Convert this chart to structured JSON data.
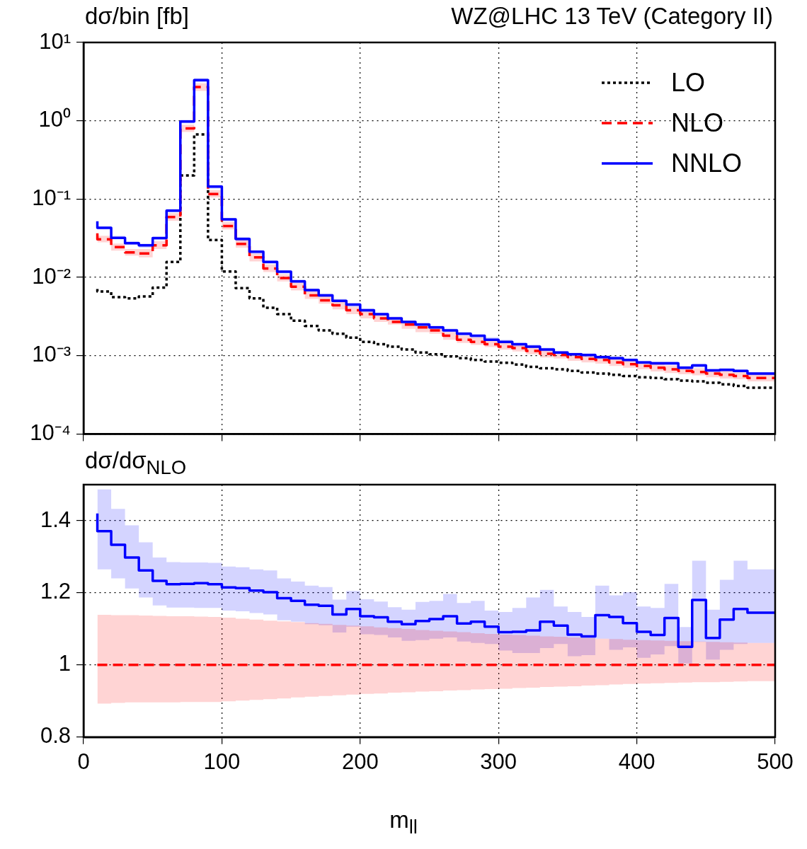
{
  "chart_data": [
    {
      "type": "step",
      "title": "WZ@LHC 13 TeV (Category II)",
      "ylabel": "dσ/bin [fb]",
      "log": "y",
      "grid": true,
      "legend": "top right",
      "tick_labels": "y",
      "x": [
        10,
        20,
        30,
        40,
        50,
        60,
        70,
        80,
        90,
        100,
        110,
        120,
        130,
        140,
        150,
        160,
        170,
        180,
        190,
        200,
        210,
        220,
        230,
        240,
        250,
        260,
        270,
        280,
        290,
        300,
        310,
        320,
        330,
        340,
        350,
        360,
        370,
        380,
        390,
        400,
        410,
        420,
        430,
        440,
        450,
        460,
        470,
        480,
        490,
        500
      ],
      "xlim": [
        0,
        500
      ],
      "xticks": [
        0,
        100,
        200,
        300,
        400,
        500
      ],
      "ylim": [
        0.0001,
        10
      ],
      "yticks": [
        {
          "value": 0.0001,
          "label": "10⁻⁴"
        },
        {
          "value": 0.001,
          "label": "10⁻³"
        },
        {
          "value": 0.01,
          "label": "10⁻²"
        },
        {
          "value": 0.1,
          "label": "10⁻¹"
        },
        {
          "value": 1,
          "label": "10⁰"
        },
        {
          "value": 10,
          "label": "10¹"
        }
      ],
      "series": [
        {
          "name": "LO",
          "color": "#000000",
          "line_style": "dotted",
          "values": [
            0.0071,
            0.0066,
            0.0056,
            0.0054,
            0.0057,
            0.0074,
            0.0157,
            0.2,
            0.67,
            0.03,
            0.0119,
            0.0073,
            0.0054,
            0.0041,
            0.0034,
            0.0028,
            0.0024,
            0.0021,
            0.0019,
            0.0017,
            0.0015,
            0.0014,
            0.0013,
            0.0012,
            0.0011,
            0.00104,
            0.00098,
            0.00093,
            0.00088,
            0.00084,
            0.00081,
            0.00077,
            0.00072,
            0.00069,
            0.00067,
            0.00064,
            0.00061,
            0.00059,
            0.00057,
            0.00055,
            0.00053,
            0.00052,
            0.0005,
            0.00048,
            0.00047,
            0.00045,
            0.00043,
            0.00041,
            0.00039,
            0.00039
          ]
        },
        {
          "name": "NLO",
          "color": "#ff0000",
          "line_style": "dashed",
          "values": [
            0.0366,
            0.0306,
            0.0244,
            0.0208,
            0.0202,
            0.0257,
            0.0589,
            0.8,
            2.7,
            0.116,
            0.0453,
            0.0267,
            0.018,
            0.013,
            0.0098,
            0.0076,
            0.0059,
            0.0051,
            0.0044,
            0.0038,
            0.0034,
            0.003,
            0.0027,
            0.0025,
            0.0023,
            0.0021,
            0.0018,
            0.0016,
            0.0015,
            0.0014,
            0.0013,
            0.00125,
            0.00115,
            0.00106,
            0.00102,
            0.00096,
            0.00091,
            0.00088,
            0.00082,
            0.00078,
            0.00074,
            0.0007,
            0.00067,
            0.00064,
            0.00062,
            0.00059,
            0.00057,
            0.00055,
            0.00052,
            0.00052
          ],
          "lower": [
            0.033,
            0.028,
            0.022,
            0.019,
            0.018,
            0.023,
            0.053,
            0.72,
            2.4,
            0.105,
            0.041,
            0.024,
            0.016,
            0.0117,
            0.0089,
            0.0068,
            0.0053,
            0.0046,
            0.0039,
            0.0034,
            0.003,
            0.0027,
            0.0025,
            0.0022,
            0.002,
            0.0019,
            0.0016,
            0.00145,
            0.00137,
            0.00129,
            0.00119,
            0.00113,
            0.00104,
            0.00095,
            0.00092,
            0.00086,
            0.00082,
            0.00079,
            0.00074,
            0.0007,
            0.00067,
            0.00063,
            0.0006,
            0.00058,
            0.00056,
            0.00053,
            0.00051,
            0.0005,
            0.00047,
            0.00047
          ],
          "upper": [
            0.041,
            0.034,
            0.027,
            0.023,
            0.023,
            0.029,
            0.066,
            0.89,
            3.0,
            0.13,
            0.051,
            0.03,
            0.02,
            0.0146,
            0.011,
            0.0085,
            0.0066,
            0.0058,
            0.0049,
            0.0042,
            0.0038,
            0.0034,
            0.0031,
            0.0028,
            0.0025,
            0.0023,
            0.002,
            0.0018,
            0.0017,
            0.0016,
            0.00148,
            0.0014,
            0.00129,
            0.00119,
            0.00114,
            0.00107,
            0.00102,
            0.00098,
            0.00092,
            0.00087,
            0.00083,
            0.00078,
            0.00075,
            0.00072,
            0.00069,
            0.00066,
            0.00064,
            0.00061,
            0.00058,
            0.00058
          ]
        },
        {
          "name": "NNLO",
          "color": "#0000ff",
          "line_style": "solid",
          "values": [
            0.052,
            0.043,
            0.032,
            0.0273,
            0.0257,
            0.0318,
            0.071,
            0.98,
            3.3,
            0.144,
            0.055,
            0.031,
            0.0213,
            0.0157,
            0.0118,
            0.0089,
            0.0069,
            0.0059,
            0.005,
            0.0045,
            0.0038,
            0.0034,
            0.003,
            0.0027,
            0.0025,
            0.0023,
            0.0021,
            0.0019,
            0.0018,
            0.0016,
            0.0015,
            0.0014,
            0.0013,
            0.0012,
            0.0011,
            0.00104,
            0.00102,
            0.00096,
            0.00093,
            0.00088,
            0.00082,
            0.0008,
            0.0008,
            0.0007,
            0.00075,
            0.00065,
            0.00066,
            0.00064,
            0.00059,
            0.00059
          ],
          "lower": [
            0.049,
            0.041,
            0.031,
            0.026,
            0.024,
            0.03,
            0.068,
            0.93,
            3.1,
            0.136,
            0.052,
            0.029,
            0.02,
            0.0149,
            0.0112,
            0.0085,
            0.0065,
            0.0056,
            0.0048,
            0.0042,
            0.0036,
            0.0032,
            0.00285,
            0.00256,
            0.0024,
            0.00219,
            0.002,
            0.00182,
            0.00168,
            0.00156,
            0.00144,
            0.00131,
            0.00125,
            0.00114,
            0.00104,
            0.00099,
            0.00097,
            0.00091,
            0.00088,
            0.00084,
            0.00078,
            0.00076,
            0.00076,
            0.00067,
            0.00071,
            0.00062,
            0.00063,
            0.00061,
            0.00056,
            0.00056
          ],
          "upper": [
            0.055,
            0.045,
            0.034,
            0.029,
            0.027,
            0.033,
            0.075,
            1.03,
            3.5,
            0.151,
            0.057,
            0.033,
            0.022,
            0.0165,
            0.0124,
            0.0094,
            0.0072,
            0.0062,
            0.0053,
            0.0047,
            0.004,
            0.0035,
            0.00315,
            0.00282,
            0.00266,
            0.00242,
            0.00222,
            0.00202,
            0.00186,
            0.00172,
            0.0016,
            0.00145,
            0.00139,
            0.00126,
            0.00114,
            0.00109,
            0.00107,
            0.00101,
            0.00098,
            0.00092,
            0.00086,
            0.00084,
            0.00084,
            0.00074,
            0.00079,
            0.00068,
            0.00069,
            0.00067,
            0.00062,
            0.00062
          ]
        }
      ]
    },
    {
      "type": "step",
      "ylabel": "dσ/dσ$_{NLO}$",
      "xlabel": "m$_{ll}$",
      "grid": true,
      "x": [
        10,
        20,
        30,
        40,
        50,
        60,
        70,
        80,
        90,
        100,
        110,
        120,
        130,
        140,
        150,
        160,
        170,
        180,
        190,
        200,
        210,
        220,
        230,
        240,
        250,
        260,
        270,
        280,
        290,
        300,
        310,
        320,
        330,
        340,
        350,
        360,
        370,
        380,
        390,
        400,
        410,
        420,
        430,
        440,
        450,
        460,
        470,
        480,
        490,
        500
      ],
      "xlim": [
        0,
        500
      ],
      "xticks": [
        0,
        100,
        200,
        300,
        400,
        500
      ],
      "ylim": [
        0.8,
        1.5
      ],
      "yticks": [
        0.8,
        1,
        1.2,
        1.4
      ],
      "series": [
        {
          "color": "#ff0000",
          "line_style": "dashed",
          "values": [
            1,
            1,
            1,
            1,
            1,
            1,
            1,
            1,
            1,
            1,
            1,
            1,
            1,
            1,
            1,
            1,
            1,
            1,
            1,
            1,
            1,
            1,
            1,
            1,
            1,
            1,
            1,
            1,
            1,
            1,
            1,
            1,
            1,
            1,
            1,
            1,
            1,
            1,
            1,
            1,
            1,
            1,
            1,
            1,
            1,
            1,
            1,
            1,
            1,
            1
          ],
          "lower": [
            0.888,
            0.893,
            0.895,
            0.896,
            0.896,
            0.896,
            0.896,
            0.897,
            0.897,
            0.897,
            0.899,
            0.901,
            0.903,
            0.905,
            0.907,
            0.91,
            0.912,
            0.914,
            0.916,
            0.918,
            0.92,
            0.921,
            0.923,
            0.924,
            0.926,
            0.927,
            0.929,
            0.93,
            0.932,
            0.933,
            0.934,
            0.936,
            0.937,
            0.939,
            0.94,
            0.941,
            0.943,
            0.944,
            0.946,
            0.947,
            0.948,
            0.949,
            0.95,
            0.951,
            0.952,
            0.952,
            0.953,
            0.954,
            0.955,
            0.955
          ],
          "upper": [
            1.14,
            1.139,
            1.138,
            1.138,
            1.137,
            1.136,
            1.135,
            1.135,
            1.134,
            1.133,
            1.131,
            1.128,
            1.126,
            1.123,
            1.121,
            1.119,
            1.116,
            1.114,
            1.111,
            1.109,
            1.107,
            1.104,
            1.102,
            1.1,
            1.097,
            1.095,
            1.093,
            1.091,
            1.088,
            1.086,
            1.084,
            1.083,
            1.081,
            1.079,
            1.078,
            1.076,
            1.075,
            1.073,
            1.072,
            1.07,
            1.069,
            1.068,
            1.067,
            1.066,
            1.065,
            1.064,
            1.063,
            1.062,
            1.061,
            1.061
          ]
        },
        {
          "color": "#0000ff",
          "line_style": "solid",
          "values": [
            1.42,
            1.371,
            1.333,
            1.298,
            1.262,
            1.233,
            1.224,
            1.225,
            1.227,
            1.224,
            1.215,
            1.213,
            1.206,
            1.202,
            1.185,
            1.178,
            1.167,
            1.164,
            1.14,
            1.155,
            1.135,
            1.132,
            1.12,
            1.113,
            1.122,
            1.127,
            1.135,
            1.115,
            1.12,
            1.106,
            1.091,
            1.092,
            1.096,
            1.12,
            1.109,
            1.084,
            1.079,
            1.138,
            1.133,
            1.116,
            1.092,
            1.083,
            1.13,
            1.05,
            1.18,
            1.075,
            1.126,
            1.155,
            1.145,
            1.145
          ],
          "lower": [
            1.299,
            1.265,
            1.24,
            1.212,
            1.187,
            1.165,
            1.159,
            1.159,
            1.158,
            1.158,
            1.151,
            1.149,
            1.144,
            1.14,
            1.124,
            1.12,
            1.113,
            1.11,
            1.09,
            1.106,
            1.085,
            1.083,
            1.076,
            1.067,
            1.069,
            1.073,
            1.076,
            1.065,
            1.061,
            1.058,
            1.04,
            1.033,
            1.033,
            1.047,
            1.058,
            1.024,
            1.027,
            1.073,
            1.042,
            1.049,
            1.02,
            1.029,
            1.052,
            1.004,
            1.064,
            1.015,
            1.042,
            1.058,
            1.061,
            1.061
          ],
          "upper": [
            1.5,
            1.487,
            1.433,
            1.387,
            1.34,
            1.298,
            1.285,
            1.284,
            1.284,
            1.283,
            1.273,
            1.271,
            1.265,
            1.262,
            1.24,
            1.231,
            1.22,
            1.216,
            1.181,
            1.205,
            1.182,
            1.176,
            1.16,
            1.153,
            1.175,
            1.178,
            1.197,
            1.172,
            1.178,
            1.151,
            1.147,
            1.158,
            1.187,
            1.208,
            1.162,
            1.147,
            1.133,
            1.22,
            1.193,
            1.202,
            1.162,
            1.158,
            1.225,
            1.105,
            1.289,
            1.153,
            1.236,
            1.289,
            1.265,
            1.265
          ]
        }
      ]
    }
  ]
}
